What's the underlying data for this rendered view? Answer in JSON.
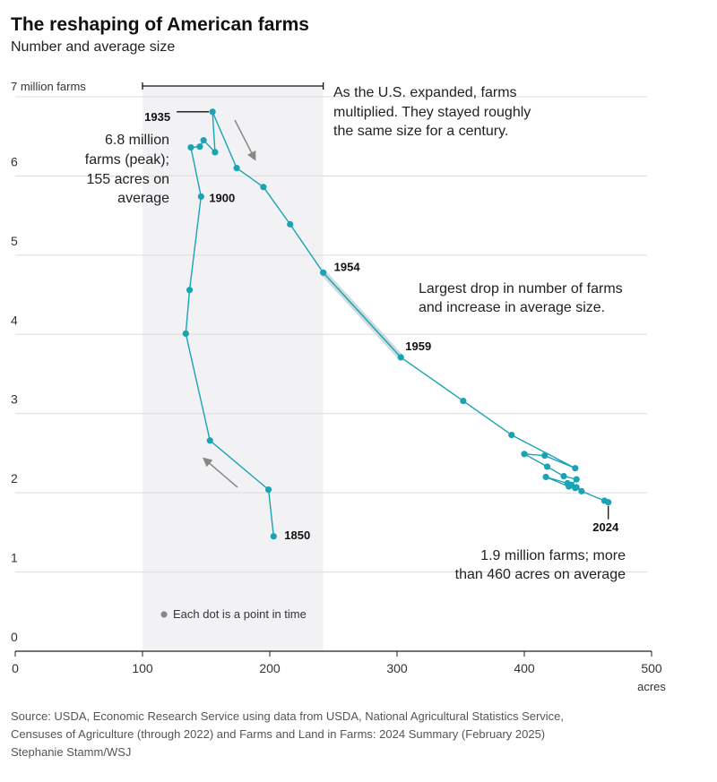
{
  "header": {
    "title": "The reshaping of American farms",
    "subtitle": "Number and average size"
  },
  "chart_data": {
    "type": "scatter",
    "connected": true,
    "x_unit": "acres",
    "y_unit": "million farms",
    "xlim": [
      0,
      500
    ],
    "ylim": [
      0,
      7
    ],
    "x_ticks": [
      0,
      100,
      200,
      300,
      400,
      500
    ],
    "x_tick_labels": [
      "0",
      "100",
      "200",
      "300",
      "400",
      "500"
    ],
    "x_unit_label": "acres",
    "y_ticks": [
      0,
      1,
      2,
      3,
      4,
      5,
      6,
      7
    ],
    "y_tick_labels": [
      "0",
      "1",
      "2",
      "3",
      "4",
      "5",
      "6",
      "7 million farms"
    ],
    "grid": true,
    "highlight_band": {
      "x_range": [
        100,
        242
      ]
    },
    "series": [
      {
        "name": "Farms",
        "color": "#1aa3b5",
        "points": [
          {
            "x": 203,
            "y": 1.45,
            "label": "1850"
          },
          {
            "x": 199,
            "y": 2.04
          },
          {
            "x": 153,
            "y": 2.66
          },
          {
            "x": 134,
            "y": 4.01
          },
          {
            "x": 137,
            "y": 4.56
          },
          {
            "x": 146,
            "y": 5.74,
            "label": "1900"
          },
          {
            "x": 138,
            "y": 6.36
          },
          {
            "x": 145,
            "y": 6.37
          },
          {
            "x": 148,
            "y": 6.45
          },
          {
            "x": 157,
            "y": 6.3
          },
          {
            "x": 155,
            "y": 6.81,
            "label": "1935"
          },
          {
            "x": 174,
            "y": 6.1
          },
          {
            "x": 195,
            "y": 5.86
          },
          {
            "x": 216,
            "y": 5.39
          },
          {
            "x": 242,
            "y": 4.78,
            "label": "1954"
          },
          {
            "x": 303,
            "y": 3.71,
            "label": "1959"
          },
          {
            "x": 352,
            "y": 3.16
          },
          {
            "x": 390,
            "y": 2.73
          },
          {
            "x": 440,
            "y": 2.31
          },
          {
            "x": 416,
            "y": 2.47
          },
          {
            "x": 400,
            "y": 2.49
          },
          {
            "x": 418,
            "y": 2.33
          },
          {
            "x": 431,
            "y": 2.21
          },
          {
            "x": 441,
            "y": 2.17
          },
          {
            "x": 437,
            "y": 2.1
          },
          {
            "x": 435,
            "y": 2.08
          },
          {
            "x": 417,
            "y": 2.2
          },
          {
            "x": 434,
            "y": 2.12
          },
          {
            "x": 440,
            "y": 2.06
          },
          {
            "x": 441,
            "y": 2.07
          },
          {
            "x": 445,
            "y": 2.02
          },
          {
            "x": 463,
            "y": 1.9
          },
          {
            "x": 466,
            "y": 1.88,
            "label": "2024"
          }
        ]
      }
    ],
    "annotations": {
      "peak_1": "6.8 million",
      "peak_2": "farms (peak);",
      "peak_3": "155 acres on",
      "peak_4": "average",
      "expand_1": "As the U.S. expanded, farms",
      "expand_2": "multiplied. They stayed roughly",
      "expand_3": "the same size for a century.",
      "drop_1": "Largest drop in number of farms",
      "drop_2": "and increase in average size.",
      "end_1": "1.9 million farms; more",
      "end_2": "than 460 acres on average",
      "legend": "Each dot is a point in time"
    }
  },
  "footer": {
    "source_1": "Source: USDA, Economic Research Service using data from USDA, National Agricultural Statistics Service,",
    "source_2": "Censuses of Agriculture (through 2022) and Farms and Land in Farms: 2024 Summary (February 2025)",
    "credit": "Stephanie Stamm/WSJ"
  }
}
